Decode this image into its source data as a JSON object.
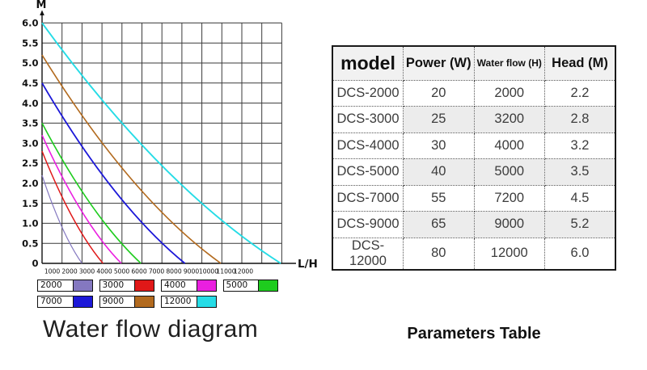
{
  "chart_data": {
    "type": "line",
    "title": "Water flow diagram",
    "xlabel": "L/H",
    "ylabel": "M",
    "xlim": [
      0,
      12000
    ],
    "ylim": [
      0,
      6
    ],
    "grid": true,
    "legend_position": "below-chart",
    "x_ticks": [
      "1000",
      "2000",
      "3000",
      "4000",
      "5000",
      "6000",
      "7000",
      "8000",
      "9000",
      "10000",
      "11000",
      "12000"
    ],
    "y_ticks": [
      "0",
      "0.5",
      "1.0",
      "1.5",
      "2.0",
      "2.5",
      "3.0",
      "3.5",
      "4.0",
      "4.5",
      "5.0",
      "5.5",
      "6.0"
    ],
    "series": [
      {
        "name": "2000",
        "color": "#8478c0",
        "stroke_width": 1.2,
        "points": [
          [
            0,
            2.2
          ],
          [
            1000,
            0.9
          ],
          [
            2000,
            0
          ]
        ]
      },
      {
        "name": "3000",
        "color": "#e01818",
        "stroke_width": 1.5,
        "points": [
          [
            0,
            2.8
          ],
          [
            1525,
            1.15
          ],
          [
            3050,
            0
          ]
        ]
      },
      {
        "name": "4000",
        "color": "#ea1fe0",
        "stroke_width": 1.6,
        "points": [
          [
            0,
            3.2
          ],
          [
            1985,
            1.3
          ],
          [
            3970,
            0
          ]
        ]
      },
      {
        "name": "5000",
        "color": "#1ecc1e",
        "stroke_width": 1.6,
        "points": [
          [
            0,
            3.5
          ],
          [
            2475,
            1.45
          ],
          [
            4950,
            0
          ]
        ]
      },
      {
        "name": "7000",
        "color": "#1c18d8",
        "stroke_width": 1.8,
        "points": [
          [
            0,
            4.5
          ],
          [
            3575,
            1.85
          ],
          [
            7150,
            0
          ]
        ]
      },
      {
        "name": "9000",
        "color": "#b26a1e",
        "stroke_width": 1.6,
        "points": [
          [
            0,
            5.2
          ],
          [
            4475,
            2.1
          ],
          [
            8950,
            0
          ]
        ]
      },
      {
        "name": "12000",
        "color": "#25dce6",
        "stroke_width": 1.9,
        "points": [
          [
            0,
            6.0
          ],
          [
            5975,
            2.45
          ],
          [
            11950,
            0
          ]
        ]
      }
    ]
  },
  "table": {
    "caption": "Parameters Table",
    "columns": [
      "model",
      "Power (W)",
      "Water flow (H)",
      "Head (M)"
    ],
    "rows": [
      [
        "DCS-2000",
        "20",
        "2000",
        "2.2"
      ],
      [
        "DCS-3000",
        "25",
        "3200",
        "2.8"
      ],
      [
        "DCS-4000",
        "30",
        "4000",
        "3.2"
      ],
      [
        "DCS-5000",
        "40",
        "5000",
        "3.5"
      ],
      [
        "DCS-7000",
        "55",
        "7200",
        "4.5"
      ],
      [
        "DCS-9000",
        "65",
        "9000",
        "5.2"
      ],
      [
        "DCS-12000",
        "80",
        "12000",
        "6.0"
      ]
    ],
    "shaded_rows": [
      1,
      3,
      5
    ]
  },
  "colors": {
    "grid": "#3a3a3a",
    "axis": "#111111",
    "table_shading": "#ececec",
    "header_shading": "#f1f1f1"
  }
}
